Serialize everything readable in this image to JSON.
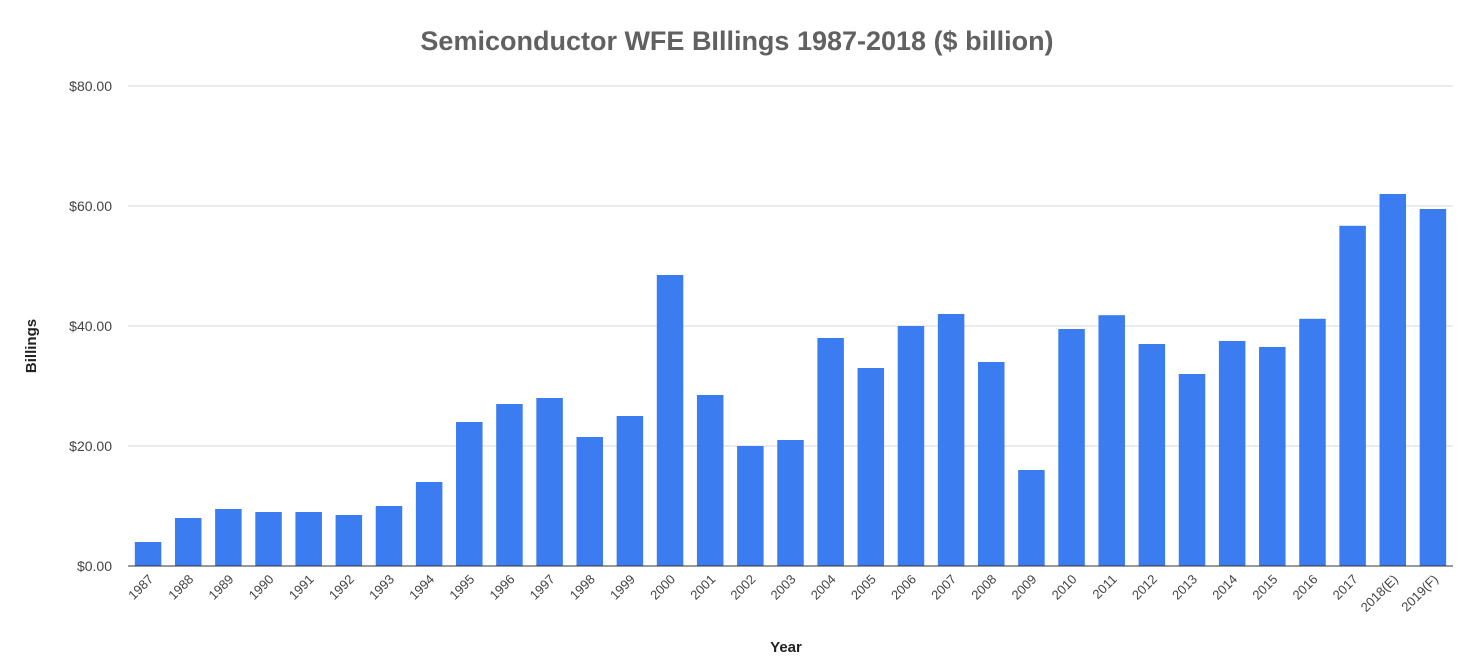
{
  "chart_data": {
    "type": "bar",
    "title": "Semiconductor WFE BIllings 1987-2018 ($ billion)",
    "xlabel": "Year",
    "ylabel": "Billings",
    "ylim": [
      0,
      80
    ],
    "yticks": [
      0,
      20,
      40,
      60,
      80
    ],
    "ytick_labels": [
      "$0.00",
      "$20.00",
      "$40.00",
      "$60.00",
      "$80.00"
    ],
    "grid": true,
    "legend": "none",
    "bar_color": "#3b7cf0",
    "categories": [
      "1987",
      "1988",
      "1989",
      "1990",
      "1991",
      "1992",
      "1993",
      "1994",
      "1995",
      "1996",
      "1997",
      "1998",
      "1999",
      "2000",
      "2001",
      "2002",
      "2003",
      "2004",
      "2005",
      "2006",
      "2007",
      "2008",
      "2009",
      "2010",
      "2011",
      "2012",
      "2013",
      "2014",
      "2015",
      "2016",
      "2017",
      "2018(E)",
      "2019(F)"
    ],
    "values": [
      4.0,
      8.0,
      9.5,
      9.0,
      9.0,
      8.5,
      10.0,
      14.0,
      24.0,
      27.0,
      28.0,
      21.5,
      25.0,
      48.5,
      28.5,
      20.0,
      21.0,
      38.0,
      33.0,
      40.0,
      42.0,
      34.0,
      16.0,
      39.5,
      41.8,
      37.0,
      32.0,
      37.5,
      36.5,
      41.2,
      56.7,
      62.0,
      59.5
    ]
  }
}
